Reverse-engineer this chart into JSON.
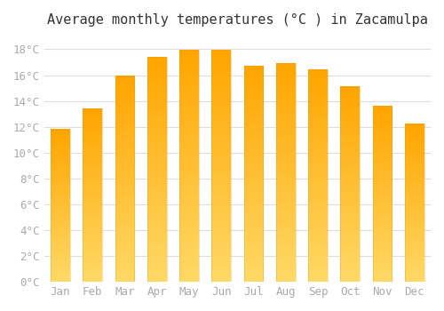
{
  "title": "Average monthly temperatures (°C ) in Zacamulpa",
  "months": [
    "Jan",
    "Feb",
    "Mar",
    "Apr",
    "May",
    "Jun",
    "Jul",
    "Aug",
    "Sep",
    "Oct",
    "Nov",
    "Dec"
  ],
  "values": [
    11.8,
    13.4,
    15.9,
    17.4,
    17.9,
    17.9,
    16.7,
    16.9,
    16.4,
    15.1,
    13.6,
    12.2
  ],
  "bar_color_top": "#FFA500",
  "bar_color_bottom": "#FFD966",
  "background_color": "#FFFFFF",
  "grid_color": "#DDDDDD",
  "tick_label_color": "#AAAAAA",
  "title_color": "#333333",
  "ylim": [
    0,
    19
  ],
  "yticks": [
    0,
    2,
    4,
    6,
    8,
    10,
    12,
    14,
    16,
    18
  ],
  "ytick_labels": [
    "0°C",
    "2°C",
    "4°C",
    "6°C",
    "8°C",
    "10°C",
    "12°C",
    "14°C",
    "16°C",
    "18°C"
  ],
  "title_fontsize": 11,
  "tick_fontsize": 9
}
